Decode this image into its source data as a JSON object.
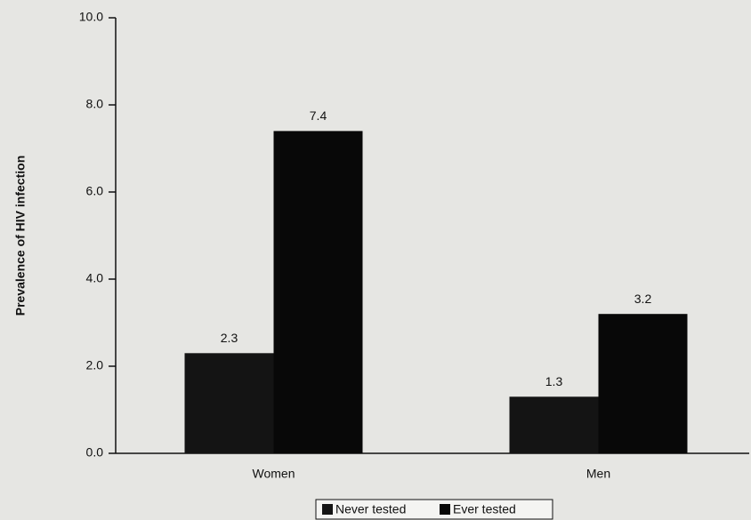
{
  "chart_data": {
    "type": "bar",
    "y_label": "Prevalence of HIV infection",
    "categories": [
      "Women",
      "Men"
    ],
    "series": [
      {
        "name": "Never tested",
        "color": "#141414",
        "values": [
          2.3,
          1.3
        ]
      },
      {
        "name": "Ever tested",
        "color": "#080808",
        "values": [
          7.4,
          3.2
        ]
      }
    ],
    "ylim": [
      0,
      10
    ],
    "yticks": [
      {
        "value": 0,
        "label": "0.0"
      },
      {
        "value": 2,
        "label": "2.0"
      },
      {
        "value": 4,
        "label": "4.0"
      },
      {
        "value": 6,
        "label": "6.0"
      },
      {
        "value": 8,
        "label": "8.0"
      },
      {
        "value": 10,
        "label": "10.0"
      }
    ],
    "legend": "bottom"
  }
}
